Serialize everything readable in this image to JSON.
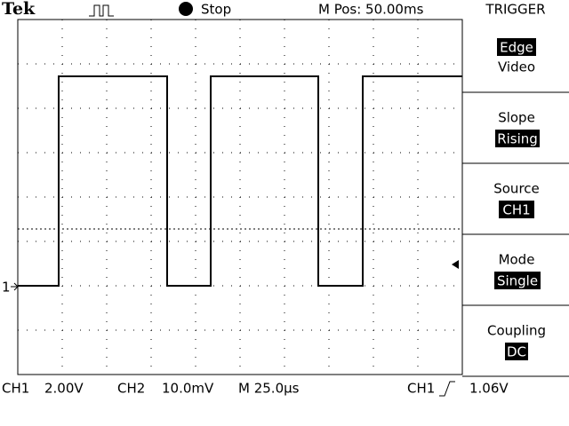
{
  "header": {
    "brand": "Tek",
    "status": "Stop",
    "position": "M Pos: 50.00ms"
  },
  "menu": {
    "title": "TRIGGER",
    "items": [
      {
        "label": "Edge",
        "value": "Video"
      },
      {
        "label": "Slope",
        "value": "Rising"
      },
      {
        "label": "Source",
        "value": "CH1"
      },
      {
        "label": "Mode",
        "value": "Single"
      },
      {
        "label": "Coupling",
        "value": "DC"
      }
    ]
  },
  "trace_marker": "1",
  "readout": {
    "ch1_label": "CH1",
    "ch1_scale": "2.00V",
    "ch2_label": "CH2",
    "ch2_scale": "10.0mV",
    "timebase": "M 25.0µs",
    "trigger_source": "CH1",
    "trigger_level": "1.06V"
  }
}
